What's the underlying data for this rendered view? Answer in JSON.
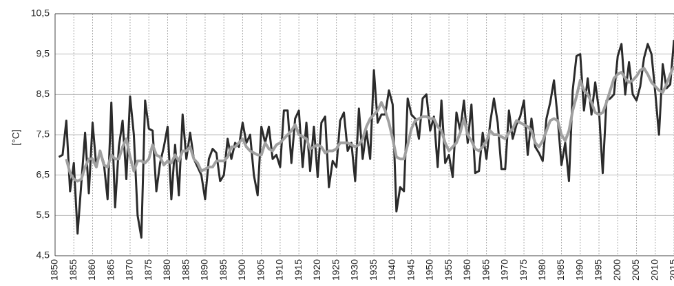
{
  "chart_data": {
    "type": "line",
    "y_label": "[°C]",
    "x": [
      1851,
      1852,
      1853,
      1854,
      1855,
      1856,
      1857,
      1858,
      1859,
      1860,
      1861,
      1862,
      1863,
      1864,
      1865,
      1866,
      1867,
      1868,
      1869,
      1870,
      1871,
      1872,
      1873,
      1874,
      1875,
      1876,
      1877,
      1878,
      1879,
      1880,
      1881,
      1882,
      1883,
      1884,
      1885,
      1886,
      1887,
      1888,
      1889,
      1890,
      1891,
      1892,
      1893,
      1894,
      1895,
      1896,
      1897,
      1898,
      1899,
      1900,
      1901,
      1902,
      1903,
      1904,
      1905,
      1906,
      1907,
      1908,
      1909,
      1910,
      1911,
      1912,
      1913,
      1914,
      1915,
      1916,
      1917,
      1918,
      1919,
      1920,
      1921,
      1922,
      1923,
      1924,
      1925,
      1926,
      1927,
      1928,
      1929,
      1930,
      1931,
      1932,
      1933,
      1934,
      1935,
      1936,
      1937,
      1938,
      1939,
      1940,
      1941,
      1942,
      1943,
      1944,
      1945,
      1946,
      1947,
      1948,
      1949,
      1950,
      1951,
      1952,
      1953,
      1954,
      1955,
      1956,
      1957,
      1958,
      1959,
      1960,
      1961,
      1962,
      1963,
      1964,
      1965,
      1966,
      1967,
      1968,
      1969,
      1970,
      1971,
      1972,
      1973,
      1974,
      1975,
      1976,
      1977,
      1978,
      1979,
      1980,
      1981,
      1982,
      1983,
      1984,
      1985,
      1986,
      1987,
      1988,
      1989,
      1990,
      1991,
      1992,
      1993,
      1994,
      1995,
      1996,
      1997,
      1998,
      1999,
      2000,
      2001,
      2002,
      2003,
      2004,
      2005,
      2006,
      2007,
      2008,
      2009,
      2010,
      2011,
      2012,
      2013,
      2014,
      2015
    ],
    "series": [
      {
        "color": "#2b2b2b",
        "values": [
          6.95,
          7.0,
          7.85,
          6.1,
          6.8,
          5.05,
          6.3,
          7.55,
          6.05,
          7.8,
          6.7,
          7.1,
          6.8,
          5.9,
          8.3,
          5.7,
          7.2,
          7.85,
          6.4,
          8.45,
          7.5,
          5.5,
          4.95,
          8.35,
          7.65,
          7.6,
          6.1,
          6.8,
          7.2,
          7.7,
          5.9,
          7.25,
          6.0,
          8.0,
          6.9,
          7.55,
          6.9,
          6.7,
          6.5,
          5.9,
          6.9,
          7.15,
          7.05,
          6.35,
          6.5,
          7.4,
          6.9,
          7.3,
          7.2,
          7.8,
          7.3,
          7.5,
          6.5,
          6.0,
          7.7,
          7.3,
          7.7,
          6.9,
          7.0,
          6.7,
          8.1,
          8.1,
          6.8,
          7.9,
          8.1,
          6.7,
          7.8,
          6.6,
          7.7,
          6.45,
          7.8,
          7.95,
          6.2,
          6.85,
          6.7,
          7.85,
          8.05,
          7.1,
          7.3,
          6.35,
          8.15,
          6.9,
          7.6,
          6.9,
          9.1,
          7.8,
          8.0,
          8.0,
          8.6,
          8.25,
          5.6,
          6.2,
          6.1,
          8.4,
          8.0,
          7.9,
          7.4,
          8.4,
          8.5,
          7.6,
          7.95,
          6.7,
          8.35,
          6.8,
          7.0,
          6.45,
          8.05,
          7.6,
          8.35,
          7.3,
          8.25,
          6.55,
          6.6,
          7.55,
          6.9,
          7.8,
          8.4,
          7.8,
          6.65,
          6.65,
          8.1,
          7.4,
          7.75,
          7.95,
          8.35,
          7.0,
          7.9,
          7.2,
          7.05,
          6.85,
          7.9,
          8.3,
          8.85,
          7.9,
          6.75,
          7.3,
          6.35,
          8.6,
          9.45,
          9.5,
          8.1,
          8.9,
          8.0,
          8.8,
          8.1,
          6.55,
          8.35,
          8.4,
          8.5,
          9.45,
          9.75,
          8.5,
          9.3,
          8.5,
          8.35,
          8.7,
          9.4,
          9.75,
          9.5,
          8.55,
          7.5,
          9.25,
          8.65,
          8.75,
          9.85
        ]
      },
      {
        "color": "#a0a0a0",
        "values": [
          null,
          null,
          6.9,
          6.55,
          6.4,
          6.35,
          6.4,
          6.7,
          6.9,
          6.9,
          6.7,
          7.1,
          6.75,
          6.7,
          7.0,
          6.9,
          6.9,
          7.2,
          7.4,
          6.95,
          6.6,
          6.85,
          6.85,
          6.8,
          6.9,
          7.25,
          7.0,
          6.95,
          6.75,
          6.85,
          6.8,
          7.0,
          6.85,
          7.1,
          7.1,
          7.2,
          6.9,
          6.8,
          6.6,
          6.65,
          6.7,
          6.7,
          6.85,
          6.85,
          6.85,
          6.95,
          7.2,
          7.2,
          7.3,
          7.4,
          7.2,
          7.1,
          7.05,
          7.0,
          7.0,
          7.3,
          7.15,
          7.1,
          7.25,
          7.3,
          7.4,
          7.5,
          7.6,
          7.75,
          7.5,
          7.45,
          7.4,
          7.15,
          7.2,
          7.25,
          7.2,
          7.05,
          7.1,
          7.1,
          7.15,
          7.3,
          7.3,
          7.3,
          7.25,
          7.2,
          7.25,
          7.4,
          7.7,
          7.9,
          8.0,
          8.1,
          8.3,
          8.1,
          7.8,
          7.4,
          6.95,
          6.9,
          6.9,
          7.25,
          7.65,
          7.85,
          7.9,
          7.95,
          7.95,
          7.9,
          7.9,
          7.7,
          7.6,
          7.3,
          7.1,
          7.2,
          7.3,
          7.55,
          7.9,
          7.5,
          7.35,
          7.15,
          7.1,
          7.2,
          7.35,
          7.6,
          7.5,
          7.5,
          7.45,
          7.4,
          7.55,
          7.65,
          7.85,
          7.8,
          7.75,
          7.7,
          7.6,
          7.3,
          7.2,
          7.35,
          7.6,
          7.85,
          7.9,
          7.85,
          7.5,
          7.35,
          7.6,
          8.1,
          8.45,
          8.85,
          8.6,
          8.5,
          8.3,
          8.05,
          8.0,
          8.05,
          8.3,
          8.6,
          8.9,
          9.0,
          9.05,
          8.9,
          8.8,
          8.85,
          8.95,
          9.1,
          9.15,
          9.0,
          8.8,
          8.7,
          8.6,
          8.55,
          8.75,
          9.0,
          9.2
        ]
      }
    ],
    "xlim": [
      1850,
      2015
    ],
    "xticks": [
      1850,
      1855,
      1860,
      1865,
      1870,
      1875,
      1880,
      1885,
      1890,
      1895,
      1900,
      1905,
      1910,
      1915,
      1920,
      1925,
      1930,
      1935,
      1940,
      1945,
      1950,
      1955,
      1960,
      1965,
      1970,
      1975,
      1980,
      1985,
      1990,
      1995,
      2000,
      2005,
      2010,
      2015
    ],
    "ylim": [
      4.5,
      10.5
    ],
    "yticks": [
      {
        "value": 4.5,
        "label": "4,5"
      },
      {
        "value": 5.5,
        "label": "5,5"
      },
      {
        "value": 6.5,
        "label": "6,5"
      },
      {
        "value": 7.5,
        "label": "7,5"
      },
      {
        "value": 8.5,
        "label": "8,5"
      },
      {
        "value": 9.5,
        "label": "9,5"
      },
      {
        "value": 10.5,
        "label": "10,5"
      }
    ],
    "grid": true
  }
}
